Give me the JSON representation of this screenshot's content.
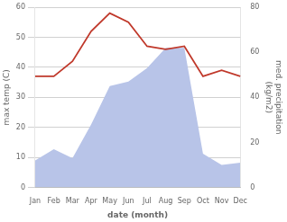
{
  "chart_data": {
    "type": "line",
    "categories": [
      "Jan",
      "Feb",
      "Mar",
      "Apr",
      "May",
      "Jun",
      "Jul",
      "Aug",
      "Sep",
      "Oct",
      "Nov",
      "Dec"
    ],
    "series": [
      {
        "type": "area",
        "color": "#b8c4e8",
        "axis": "y2",
        "values": [
          12,
          17,
          13,
          28,
          45,
          47,
          53,
          62,
          62,
          15,
          10,
          11
        ]
      },
      {
        "type": "line",
        "color": "#c0392b",
        "values": [
          37,
          37,
          42,
          52,
          58,
          55,
          47,
          46,
          47,
          37,
          39,
          37
        ]
      }
    ],
    "xlabel": "date (month)",
    "ylabel": "max temp (C)",
    "y2label": "med. precipitation\n(kg/m2)",
    "ylim": [
      0,
      60
    ],
    "yticks": [
      0,
      10,
      20,
      30,
      40,
      50,
      60
    ],
    "y2lim": [
      0,
      80
    ],
    "y2ticks": [
      0,
      20,
      40,
      60,
      80
    ],
    "grid": "y"
  }
}
